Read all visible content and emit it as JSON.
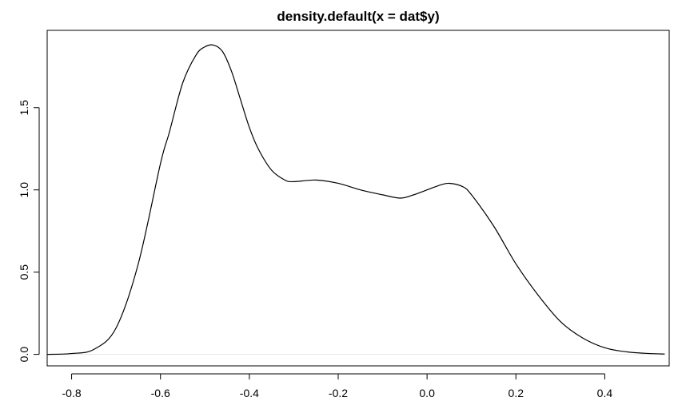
{
  "chart_data": {
    "type": "line",
    "title": "density.default(x = dat$y)",
    "xlabel": "",
    "ylabel": "",
    "xlim": [
      -0.855,
      0.545
    ],
    "ylim": [
      -0.07,
      1.97
    ],
    "x_ticks": [
      -0.8,
      -0.6,
      -0.4,
      -0.2,
      0.0,
      0.2,
      0.4
    ],
    "x_tick_labels": [
      "-0.8",
      "-0.6",
      "-0.4",
      "-0.2",
      "0.0",
      "0.2",
      "0.4"
    ],
    "y_ticks": [
      0.0,
      0.5,
      1.0,
      1.5
    ],
    "y_tick_labels": [
      "0.0",
      "0.5",
      "1.0",
      "1.5"
    ],
    "grid": false,
    "series": [
      {
        "x": [
          -0.855,
          -0.8,
          -0.75,
          -0.7,
          -0.65,
          -0.6,
          -0.58,
          -0.55,
          -0.52,
          -0.5,
          -0.48,
          -0.46,
          -0.44,
          -0.42,
          -0.4,
          -0.38,
          -0.35,
          -0.32,
          -0.3,
          -0.25,
          -0.2,
          -0.15,
          -0.1,
          -0.06,
          -0.03,
          0.0,
          0.03,
          0.05,
          0.08,
          0.1,
          0.15,
          0.2,
          0.25,
          0.3,
          0.35,
          0.4,
          0.45,
          0.5,
          0.535
        ],
        "y": [
          0.0,
          0.005,
          0.03,
          0.16,
          0.55,
          1.16,
          1.35,
          1.65,
          1.82,
          1.87,
          1.88,
          1.84,
          1.72,
          1.55,
          1.38,
          1.25,
          1.12,
          1.06,
          1.05,
          1.06,
          1.04,
          1.0,
          0.97,
          0.95,
          0.97,
          1.0,
          1.03,
          1.04,
          1.02,
          0.97,
          0.78,
          0.55,
          0.36,
          0.2,
          0.1,
          0.04,
          0.015,
          0.005,
          0.002
        ]
      }
    ]
  }
}
